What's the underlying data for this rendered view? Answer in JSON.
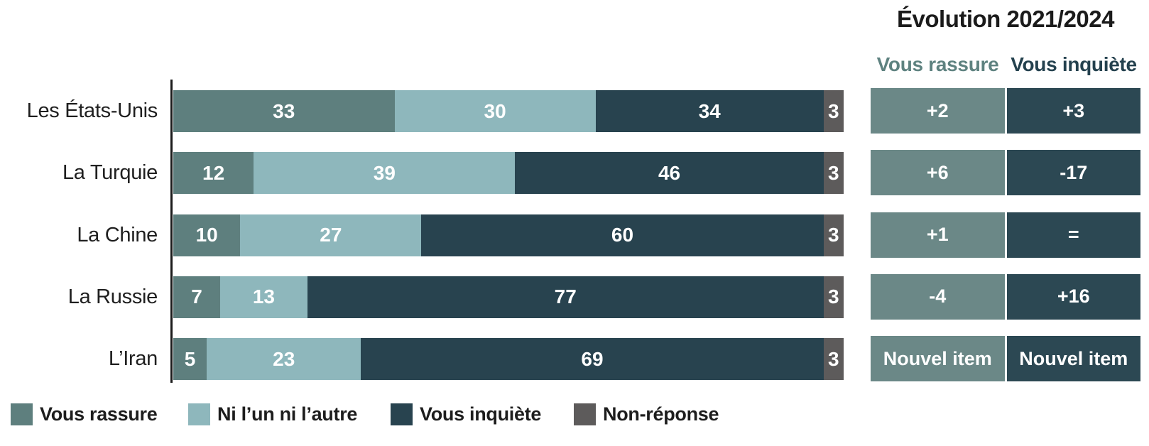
{
  "chart_data": {
    "type": "bar",
    "stacked": true,
    "orientation": "horizontal",
    "title": "",
    "categories": [
      "Les États-Unis",
      "La Turquie",
      "La Chine",
      "La Russie",
      "L’Iran"
    ],
    "series": [
      {
        "name": "Vous rassure",
        "color": "#5e7f7e",
        "values": [
          33,
          12,
          10,
          7,
          5
        ]
      },
      {
        "name": "Ni l’un ni l’autre",
        "color": "#8eb7bc",
        "values": [
          30,
          39,
          27,
          13,
          23
        ]
      },
      {
        "name": "Vous inquiète",
        "color": "#28434f",
        "values": [
          34,
          46,
          60,
          77,
          69
        ]
      },
      {
        "name": "Non-réponse",
        "color": "#5d5b5b",
        "values": [
          3,
          3,
          3,
          3,
          3
        ]
      }
    ],
    "xlim": [
      0,
      100
    ],
    "value_labels": "inside, white, bold",
    "grid": false,
    "legend_position": "bottom"
  },
  "evolution": {
    "title": "Évolution 2021/2024",
    "columns": [
      {
        "label": "Vous rassure",
        "text_color": "#5e8280",
        "cell_color": "#6b8887"
      },
      {
        "label": "Vous inquiète",
        "text_color": "#24414e",
        "cell_color": "#2c4853"
      }
    ],
    "rows": [
      [
        "+2",
        "+3"
      ],
      [
        "+6",
        "-17"
      ],
      [
        "+1",
        "="
      ],
      [
        "-4",
        "+16"
      ],
      [
        "Nouvel item",
        "Nouvel item"
      ]
    ]
  },
  "legend": {
    "items": [
      {
        "label": "Vous rassure",
        "color": "#5e7f7e"
      },
      {
        "label": "Ni l’un ni l’autre",
        "color": "#8eb7bc"
      },
      {
        "label": "Vous inquiète",
        "color": "#28434f"
      },
      {
        "label": "Non-réponse",
        "color": "#5d5b5b"
      }
    ]
  },
  "colors": {
    "axis": "#1b1b1b",
    "row_label_text": "#1f1f1f",
    "bar_value_text": "#ffffff",
    "background": "#ffffff"
  }
}
